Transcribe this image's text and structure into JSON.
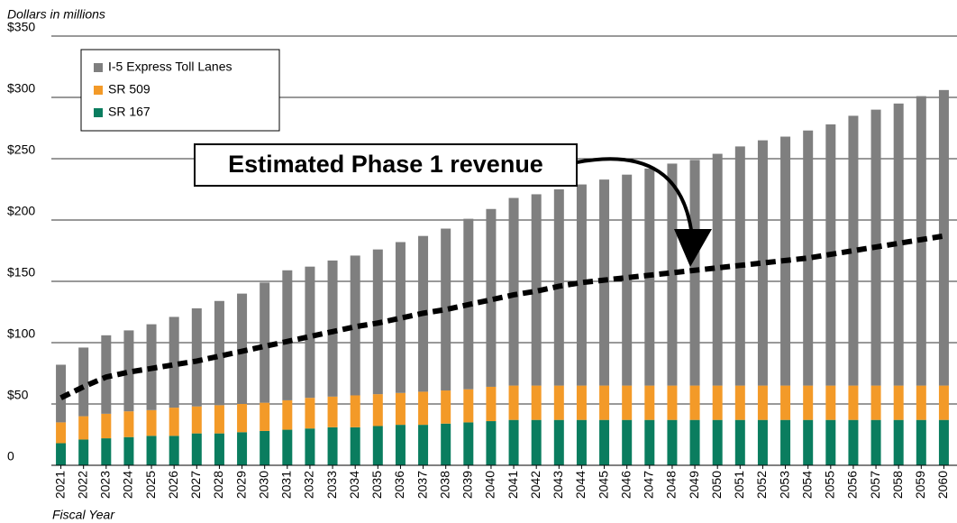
{
  "chart_data": {
    "type": "bar",
    "y_axis_label": "Dollars in millions",
    "x_axis_label": "Fiscal Year",
    "categories": [
      "2021",
      "2022",
      "2023",
      "2024",
      "2025",
      "2026",
      "2027",
      "2028",
      "2029",
      "2030",
      "2031",
      "2032",
      "2033",
      "2034",
      "2035",
      "2036",
      "2037",
      "2038",
      "2039",
      "2040",
      "2041",
      "2042",
      "2043",
      "2044",
      "2045",
      "2046",
      "2047",
      "2048",
      "2049",
      "2050",
      "2051",
      "2052",
      "2053",
      "2054",
      "2055",
      "2056",
      "2057",
      "2058",
      "2059",
      "2060"
    ],
    "series": [
      {
        "name": "SR 167",
        "color": "#0a7d5f",
        "values": [
          18,
          21,
          22,
          23,
          24,
          24,
          26,
          26,
          27,
          28,
          29,
          30,
          31,
          31,
          32,
          33,
          33,
          34,
          35,
          36,
          37,
          37,
          37,
          37,
          37,
          37,
          37,
          37,
          37,
          37,
          37,
          37,
          37,
          37,
          37,
          37,
          37,
          37,
          37,
          37
        ]
      },
      {
        "name": "SR 509",
        "color": "#f39a28",
        "values": [
          17,
          19,
          20,
          21,
          21,
          23,
          22,
          23,
          23,
          23,
          24,
          25,
          25,
          26,
          26,
          26,
          27,
          27,
          27,
          28,
          28,
          28,
          28,
          28,
          28,
          28,
          28,
          28,
          28,
          28,
          28,
          28,
          28,
          28,
          28,
          28,
          28,
          28,
          28,
          28
        ]
      },
      {
        "name": "I-5 Express Toll Lanes",
        "color": "#7f7f7f",
        "values": [
          47,
          56,
          64,
          66,
          70,
          74,
          80,
          85,
          90,
          98,
          106,
          107,
          111,
          114,
          118,
          123,
          127,
          132,
          139,
          145,
          153,
          156,
          160,
          164,
          168,
          172,
          177,
          181,
          184,
          189,
          195,
          200,
          203,
          208,
          213,
          220,
          225,
          230,
          236,
          241
        ]
      }
    ],
    "line": {
      "name": "Estimated Phase 1 revenue",
      "color": "#000000",
      "values": [
        55,
        64,
        72,
        76,
        79,
        82,
        85,
        89,
        93,
        97,
        101,
        105,
        109,
        113,
        116,
        120,
        124,
        127,
        131,
        135,
        139,
        142,
        146,
        149,
        151,
        153,
        155,
        157,
        159,
        161,
        163,
        165,
        167,
        169,
        172,
        175,
        178,
        181,
        184,
        187
      ]
    },
    "ylim": [
      0,
      350
    ],
    "yticks": [
      0,
      {
        "value": 50,
        "label": "$50"
      },
      {
        "value": 100,
        "label": "$100"
      },
      {
        "value": 150,
        "label": "$150"
      },
      {
        "value": 200,
        "label": "$200"
      },
      {
        "value": 250,
        "label": "$250"
      },
      {
        "value": 300,
        "label": "$300"
      },
      {
        "value": 350,
        "label": "$350"
      }
    ],
    "grid": true,
    "legend": "upper left"
  }
}
